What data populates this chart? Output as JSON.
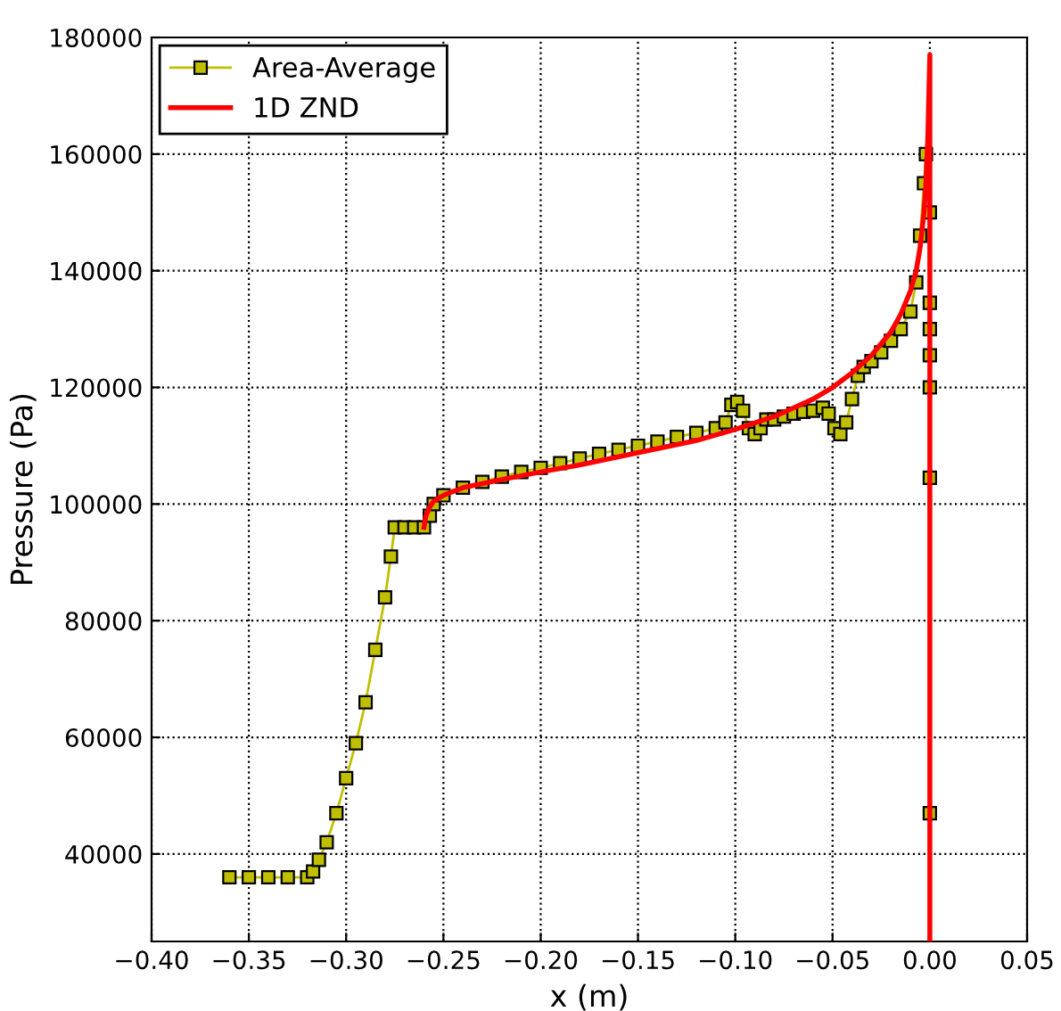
{
  "chart_data": {
    "type": "line",
    "xlabel": "x (m)",
    "ylabel": "Pressure (Pa)",
    "xlim": [
      -0.4,
      0.05
    ],
    "ylim": [
      25000,
      180000
    ],
    "xticks": [
      {
        "value": -0.4,
        "label": "−0.40"
      },
      {
        "value": -0.35,
        "label": "−0.35"
      },
      {
        "value": -0.3,
        "label": "−0.30"
      },
      {
        "value": -0.25,
        "label": "−0.25"
      },
      {
        "value": -0.2,
        "label": "−0.20"
      },
      {
        "value": -0.15,
        "label": "−0.15"
      },
      {
        "value": -0.1,
        "label": "−0.10"
      },
      {
        "value": -0.05,
        "label": "−0.05"
      },
      {
        "value": 0,
        "label": "0.00"
      },
      {
        "value": 0.05,
        "label": "0.05"
      }
    ],
    "yticks": [
      40000,
      60000,
      80000,
      100000,
      120000,
      140000,
      160000,
      180000
    ],
    "grid": true,
    "legend": "top left",
    "series": [
      {
        "name": "Area-Average",
        "color": "#bfbf00",
        "marker": "square",
        "x": [
          -0.36,
          -0.35,
          -0.34,
          -0.33,
          -0.32,
          -0.317,
          -0.314,
          -0.31,
          -0.305,
          -0.3,
          -0.295,
          -0.29,
          -0.285,
          -0.28,
          -0.277,
          -0.275,
          -0.27,
          -0.265,
          -0.26,
          -0.257,
          -0.255,
          -0.25,
          -0.24,
          -0.23,
          -0.22,
          -0.21,
          -0.2,
          -0.19,
          -0.18,
          -0.17,
          -0.16,
          -0.15,
          -0.14,
          -0.13,
          -0.12,
          -0.11,
          -0.105,
          -0.102,
          -0.099,
          -0.096,
          -0.093,
          -0.09,
          -0.087,
          -0.084,
          -0.08,
          -0.075,
          -0.07,
          -0.065,
          -0.06,
          -0.055,
          -0.052,
          -0.049,
          -0.046,
          -0.043,
          -0.04,
          -0.037,
          -0.034,
          -0.03,
          -0.025,
          -0.02,
          -0.015,
          -0.01,
          -0.007,
          -0.005,
          -0.003,
          -0.002,
          0.0,
          0.0,
          0.0,
          0.0,
          0.0,
          0.0,
          0.0
        ],
        "values": [
          36000,
          36000,
          36000,
          36000,
          36000,
          37000,
          39000,
          42000,
          47000,
          53000,
          59000,
          66000,
          75000,
          84000,
          91000,
          96000,
          96000,
          96000,
          96000,
          98000,
          100000,
          101500,
          102800,
          103800,
          104700,
          105500,
          106200,
          107000,
          107800,
          108600,
          109300,
          110000,
          110700,
          111500,
          112200,
          113000,
          114000,
          117000,
          117500,
          116000,
          113000,
          112000,
          113000,
          114500,
          114500,
          115000,
          115500,
          115800,
          116000,
          116500,
          115500,
          113000,
          112000,
          114000,
          118000,
          122000,
          123500,
          124500,
          126000,
          128000,
          130000,
          133000,
          138000,
          146000,
          155000,
          160000,
          150000,
          134500,
          130000,
          125500,
          120000,
          104500,
          47000
        ]
      },
      {
        "name": "1D ZND",
        "color": "#ff0000",
        "marker": "none",
        "x": [
          -0.26,
          -0.259,
          -0.257,
          -0.255,
          -0.25,
          -0.24,
          -0.22,
          -0.2,
          -0.18,
          -0.15,
          -0.12,
          -0.1,
          -0.08,
          -0.07,
          -0.06,
          -0.05,
          -0.04,
          -0.03,
          -0.02,
          -0.015,
          -0.01,
          -0.007,
          -0.005,
          -0.003,
          -0.002,
          -0.001,
          0.0,
          0.0
        ],
        "values": [
          96000,
          98000,
          99500,
          100500,
          101500,
          102800,
          104200,
          105500,
          106700,
          108800,
          110900,
          112800,
          115000,
          116500,
          118000,
          120000,
          122500,
          125500,
          129500,
          132500,
          136500,
          140000,
          144000,
          150000,
          155000,
          163000,
          177000,
          25000
        ]
      }
    ]
  }
}
